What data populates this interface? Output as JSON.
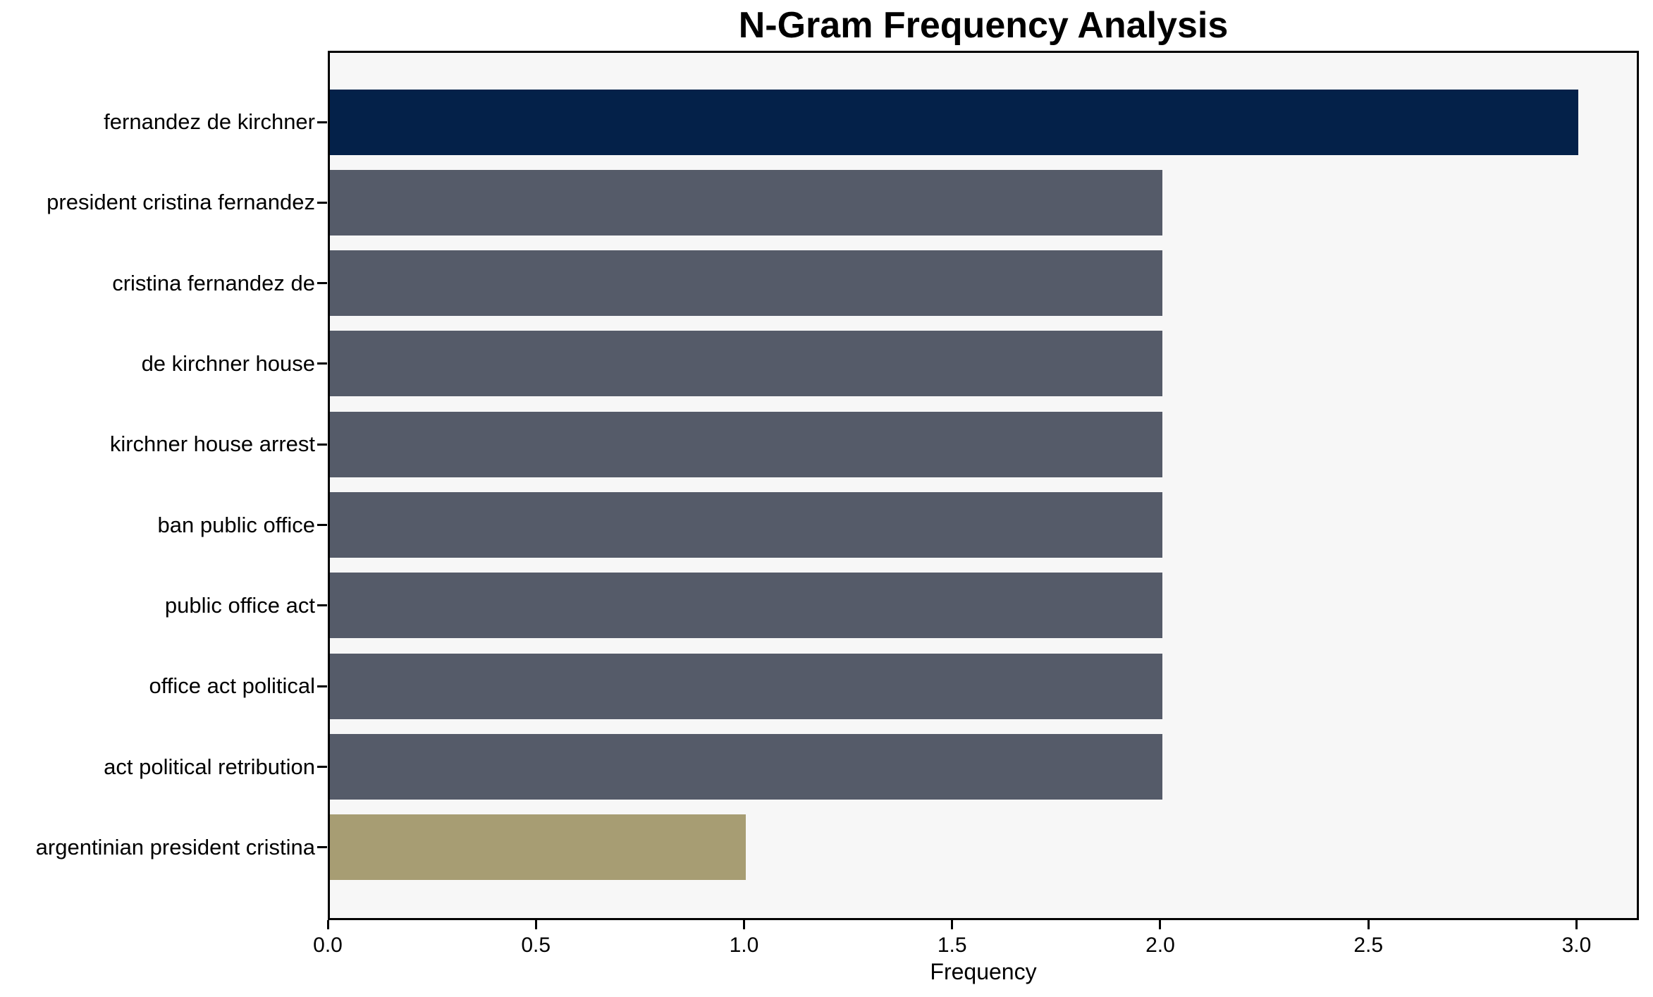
{
  "chart_data": {
    "type": "bar",
    "orientation": "horizontal",
    "title": "N-Gram Frequency Analysis",
    "xlabel": "Frequency",
    "ylabel": "",
    "categories": [
      "fernandez de kirchner",
      "president cristina fernandez",
      "cristina fernandez de",
      "de kirchner house",
      "kirchner house arrest",
      "ban public office",
      "public office act",
      "office act political",
      "act political retribution",
      "argentinian president cristina"
    ],
    "values": [
      3,
      2,
      2,
      2,
      2,
      2,
      2,
      2,
      2,
      1
    ],
    "bar_colors": [
      "#042149",
      "#555b69",
      "#555b69",
      "#555b69",
      "#555b69",
      "#555b69",
      "#555b69",
      "#555b69",
      "#555b69",
      "#a79d73"
    ],
    "x_ticks": [
      0.0,
      0.5,
      1.0,
      1.5,
      2.0,
      2.5,
      3.0
    ],
    "x_tick_labels": [
      "0.0",
      "0.5",
      "1.0",
      "1.5",
      "2.0",
      "2.5",
      "3.0"
    ],
    "xlim": [
      0,
      3.15
    ],
    "grid": false,
    "plot_background": "#f7f7f7",
    "figure_background": "#ffffff",
    "accent_colors": {
      "highest_bar": "#042149",
      "middle_bars": "#555b69",
      "lowest_bar": "#a79d73"
    }
  }
}
